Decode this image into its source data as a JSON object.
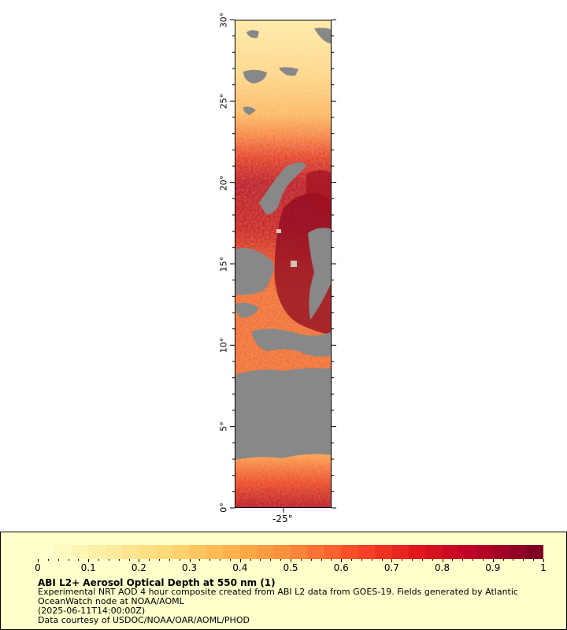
{
  "map": {
    "lat_labels": [
      "30°",
      "25°",
      "20°",
      "15°",
      "10°",
      "5°",
      "0°"
    ],
    "lon_labels": [
      "-25°"
    ],
    "no_data_color": "#888888"
  },
  "legend": {
    "tick_labels": [
      "0",
      "0.1",
      "0.2",
      "0.3",
      "0.4",
      "0.5",
      "0.6",
      "0.7",
      "0.8",
      "0.9",
      "1"
    ],
    "colors": [
      "#ffffcc",
      "#ffeda0",
      "#fed976",
      "#feb24c",
      "#fd8d3c",
      "#fc4e2a",
      "#e31a1c",
      "#bd0026",
      "#800026"
    ],
    "title": "ABI L2+ Aerosol Optical Depth at 550 nm (1)",
    "line1": "Experimental NRT AOD 4 hour composite created from ABI L2 data from GOES-19. Fields generated by Atlantic",
    "line2": "OceanWatch node at NOAA/AOML",
    "line3": "(2025-06-11T14:00:00Z)",
    "line4": "Data courtesy of USDOC/NOAA/OAR/AOML/PHOD"
  }
}
